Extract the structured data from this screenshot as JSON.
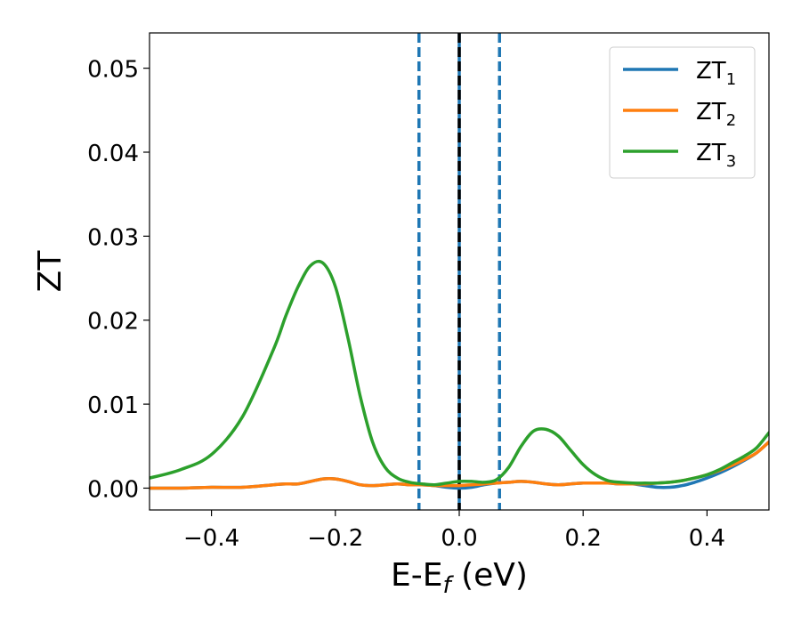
{
  "chart_data": {
    "type": "line",
    "title": "",
    "xlabel": "E-E",
    "xlabel_sub": "f",
    "xlabel_unit": " (eV)",
    "ylabel": "ZT",
    "xlim": [
      -0.5,
      0.5
    ],
    "ylim": [
      -0.0026,
      0.0542
    ],
    "xticks": [
      -0.4,
      -0.2,
      0.0,
      0.2,
      0.4
    ],
    "xtick_labels": [
      "−0.4",
      "−0.2",
      "0.0",
      "0.2",
      "0.4"
    ],
    "yticks": [
      0.0,
      0.01,
      0.02,
      0.03,
      0.04,
      0.05
    ],
    "ytick_labels": [
      "0.00",
      "0.01",
      "0.02",
      "0.03",
      "0.04",
      "0.05"
    ],
    "grid": false,
    "legend_position": "top-right",
    "vlines": [
      {
        "x": -0.065,
        "style": "dashed",
        "color": "#1f77b4"
      },
      {
        "x": 0.0,
        "style": "solid",
        "color": "#1f77b4"
      },
      {
        "x": 0.0,
        "style": "dashed",
        "color": "#000000"
      },
      {
        "x": 0.065,
        "style": "dashed",
        "color": "#1f77b4"
      }
    ],
    "x": [
      -0.5,
      -0.45,
      -0.4,
      -0.35,
      -0.3,
      -0.28,
      -0.26,
      -0.24,
      -0.22,
      -0.2,
      -0.18,
      -0.16,
      -0.14,
      -0.12,
      -0.1,
      -0.08,
      -0.06,
      -0.04,
      -0.02,
      0.0,
      0.02,
      0.04,
      0.06,
      0.08,
      0.1,
      0.12,
      0.14,
      0.16,
      0.18,
      0.2,
      0.22,
      0.24,
      0.26,
      0.28,
      0.3,
      0.32,
      0.34,
      0.36,
      0.38,
      0.4,
      0.42,
      0.44,
      0.46,
      0.48,
      0.5
    ],
    "series": [
      {
        "name": "ZT",
        "sub": "1",
        "color": "#1f77b4",
        "values": [
          0.0,
          0.0,
          0.0001,
          0.0001,
          0.0004,
          0.0005,
          0.0005,
          0.0008,
          0.0011,
          0.0011,
          0.0008,
          0.0004,
          0.0003,
          0.0004,
          0.0005,
          0.0004,
          0.0004,
          0.0003,
          0.0001,
          0.0,
          0.0001,
          0.0004,
          0.0006,
          0.0007,
          0.0008,
          0.0007,
          0.0005,
          0.0004,
          0.0005,
          0.0006,
          0.0006,
          0.0006,
          0.0005,
          0.0005,
          0.0003,
          0.0001,
          0.0001,
          0.0003,
          0.0007,
          0.0012,
          0.0018,
          0.0025,
          0.0033,
          0.0042,
          0.0055
        ]
      },
      {
        "name": "ZT",
        "sub": "2",
        "color": "#ff7f0e",
        "values": [
          0.0,
          0.0,
          0.0001,
          0.0001,
          0.0004,
          0.0005,
          0.0005,
          0.0008,
          0.0011,
          0.0011,
          0.0008,
          0.0004,
          0.0003,
          0.0004,
          0.0005,
          0.0004,
          0.0004,
          0.0003,
          0.0003,
          0.0003,
          0.0004,
          0.0005,
          0.0006,
          0.0007,
          0.0008,
          0.0007,
          0.0005,
          0.0004,
          0.0005,
          0.0006,
          0.0006,
          0.0006,
          0.0005,
          0.0005,
          0.0005,
          0.0006,
          0.0007,
          0.0009,
          0.0012,
          0.0016,
          0.0021,
          0.0027,
          0.0034,
          0.0042,
          0.0055
        ]
      },
      {
        "name": "ZT",
        "sub": "3",
        "color": "#2ca02c",
        "values": [
          0.0012,
          0.0022,
          0.004,
          0.0085,
          0.0165,
          0.0205,
          0.024,
          0.0265,
          0.0268,
          0.024,
          0.018,
          0.011,
          0.0055,
          0.0025,
          0.0012,
          0.0007,
          0.0005,
          0.0004,
          0.0006,
          0.0008,
          0.0008,
          0.0007,
          0.001,
          0.0025,
          0.005,
          0.0068,
          0.007,
          0.0062,
          0.0045,
          0.0028,
          0.0016,
          0.0009,
          0.0007,
          0.0006,
          0.0006,
          0.0006,
          0.0007,
          0.0009,
          0.0012,
          0.0016,
          0.0022,
          0.003,
          0.0038,
          0.0048,
          0.0066
        ]
      }
    ]
  }
}
